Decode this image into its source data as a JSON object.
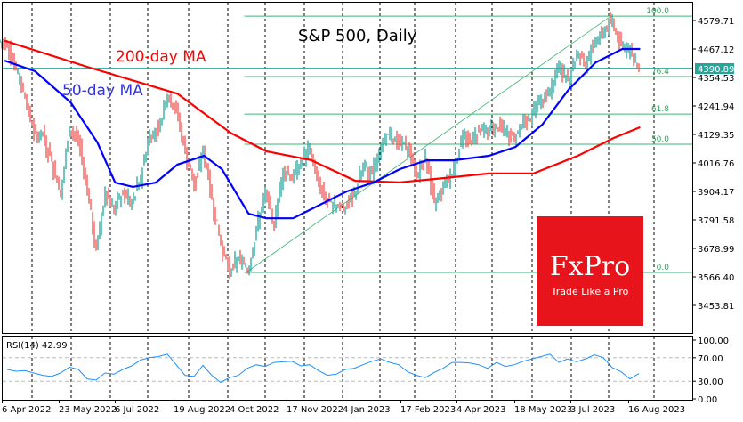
{
  "chart_data": {
    "type": "candlestick",
    "title": "S&P 500, Daily",
    "instrument": "S&P 500",
    "timeframe": "Daily",
    "colors": {
      "up": "#26a69a",
      "down": "#ef5350",
      "ma200": "#ff0000",
      "ma50": "#0000ff",
      "fib": "#3cb371",
      "rsi": "#1e90ff",
      "price_label": "#26a69a"
    },
    "y_ticks": [
      "4579.71",
      "4467.12",
      "4354.53",
      "4241.94",
      "4129.35",
      "4016.76",
      "3904.17",
      "3791.58",
      "3678.99",
      "3566.40",
      "3453.81"
    ],
    "ylim": [
      3400,
      4620
    ],
    "x_tick_labels": [
      "6 Apr 2022",
      "23 May 2022",
      "6 Jul 2022",
      "19 Aug 2022",
      "4 Oct 2022",
      "17 Nov 2022",
      "4 Jan 2023",
      "17 Feb 2023",
      "4 Apr 2023",
      "18 May 2023",
      "3 Jul 2023",
      "16 Aug 2023"
    ],
    "current_price": "4390.89",
    "weekly_close": [
      [
        "2022-04-08",
        4488
      ],
      [
        "2022-04-15",
        4392
      ],
      [
        "2022-04-22",
        4272
      ],
      [
        "2022-04-29",
        4132
      ],
      [
        "2022-05-06",
        4123
      ],
      [
        "2022-05-13",
        4023
      ],
      [
        "2022-05-20",
        3901
      ],
      [
        "2022-05-27",
        4158
      ],
      [
        "2022-06-03",
        4109
      ],
      [
        "2022-06-10",
        3901
      ],
      [
        "2022-06-17",
        3675
      ],
      [
        "2022-06-24",
        3912
      ],
      [
        "2022-07-01",
        3825
      ],
      [
        "2022-07-08",
        3899
      ],
      [
        "2022-07-15",
        3863
      ],
      [
        "2022-07-22",
        3962
      ],
      [
        "2022-07-29",
        4130
      ],
      [
        "2022-08-05",
        4145
      ],
      [
        "2022-08-12",
        4280
      ],
      [
        "2022-08-19",
        4228
      ],
      [
        "2022-08-26",
        4058
      ],
      [
        "2022-09-02",
        3924
      ],
      [
        "2022-09-09",
        4067
      ],
      [
        "2022-09-16",
        3873
      ],
      [
        "2022-09-23",
        3693
      ],
      [
        "2022-09-30",
        3586
      ],
      [
        "2022-10-07",
        3640
      ],
      [
        "2022-10-14",
        3583
      ],
      [
        "2022-10-21",
        3752
      ],
      [
        "2022-10-28",
        3901
      ],
      [
        "2022-11-04",
        3771
      ],
      [
        "2022-11-11",
        3993
      ],
      [
        "2022-11-18",
        3965
      ],
      [
        "2022-11-25",
        4026
      ],
      [
        "2022-12-02",
        4072
      ],
      [
        "2022-12-09",
        3934
      ],
      [
        "2022-12-16",
        3852
      ],
      [
        "2022-12-23",
        3845
      ],
      [
        "2022-12-30",
        3840
      ],
      [
        "2023-01-06",
        3895
      ],
      [
        "2023-01-13",
        3999
      ],
      [
        "2023-01-20",
        3972
      ],
      [
        "2023-01-27",
        4071
      ],
      [
        "2023-02-03",
        4136
      ],
      [
        "2023-02-10",
        4090
      ],
      [
        "2023-02-17",
        4079
      ],
      [
        "2023-02-24",
        3970
      ],
      [
        "2023-03-03",
        4046
      ],
      [
        "2023-03-10",
        3862
      ],
      [
        "2023-03-17",
        3917
      ],
      [
        "2023-03-24",
        3971
      ],
      [
        "2023-03-31",
        4109
      ],
      [
        "2023-04-07",
        4105
      ],
      [
        "2023-04-14",
        4137
      ],
      [
        "2023-04-21",
        4133
      ],
      [
        "2023-04-28",
        4169
      ],
      [
        "2023-05-05",
        4136
      ],
      [
        "2023-05-12",
        4124
      ],
      [
        "2023-05-19",
        4192
      ],
      [
        "2023-05-26",
        4205
      ],
      [
        "2023-06-02",
        4282
      ],
      [
        "2023-06-09",
        4299
      ],
      [
        "2023-06-16",
        4410
      ],
      [
        "2023-06-23",
        4348
      ],
      [
        "2023-06-30",
        4450
      ],
      [
        "2023-07-07",
        4399
      ],
      [
        "2023-07-14",
        4505
      ],
      [
        "2023-07-21",
        4536
      ],
      [
        "2023-07-28",
        4582
      ],
      [
        "2023-08-04",
        4478
      ],
      [
        "2023-08-11",
        4464
      ],
      [
        "2023-08-18",
        4390.89
      ]
    ],
    "ma200": {
      "label": "200-day MA",
      "points": [
        [
          "2022-04-06",
          4500
        ],
        [
          "2022-06-11",
          4395
        ],
        [
          "2022-08-20",
          4290
        ],
        [
          "2022-10-01",
          4135
        ],
        [
          "2022-10-29",
          4063
        ],
        [
          "2022-12-03",
          4028
        ],
        [
          "2023-01-07",
          3946
        ],
        [
          "2023-02-11",
          3940
        ],
        [
          "2023-03-18",
          3957
        ],
        [
          "2023-04-22",
          3975
        ],
        [
          "2023-05-27",
          3975
        ],
        [
          "2023-07-01",
          4045
        ],
        [
          "2023-07-29",
          4115
        ],
        [
          "2023-08-19",
          4158
        ]
      ]
    },
    "ma50": {
      "label": "50-day MA",
      "points": [
        [
          "2022-04-06",
          4421
        ],
        [
          "2022-04-30",
          4379
        ],
        [
          "2022-05-28",
          4256
        ],
        [
          "2022-06-18",
          4098
        ],
        [
          "2022-07-02",
          3939
        ],
        [
          "2022-07-16",
          3922
        ],
        [
          "2022-08-03",
          3939
        ],
        [
          "2022-08-20",
          4010
        ],
        [
          "2022-09-10",
          4045
        ],
        [
          "2022-09-24",
          3992
        ],
        [
          "2022-10-15",
          3816
        ],
        [
          "2022-10-29",
          3798
        ],
        [
          "2022-11-19",
          3798
        ],
        [
          "2022-12-10",
          3851
        ],
        [
          "2022-12-31",
          3904
        ],
        [
          "2023-01-21",
          3939
        ],
        [
          "2023-02-11",
          3992
        ],
        [
          "2023-03-04",
          4027
        ],
        [
          "2023-03-25",
          4027
        ],
        [
          "2023-04-22",
          4045
        ],
        [
          "2023-05-13",
          4080
        ],
        [
          "2023-06-03",
          4168
        ],
        [
          "2023-06-24",
          4308
        ],
        [
          "2023-07-15",
          4414
        ],
        [
          "2023-08-05",
          4467
        ],
        [
          "2023-08-19",
          4467
        ]
      ]
    },
    "fibonacci": {
      "from": [
        "2022-10-13",
        3584
      ],
      "to": [
        "2023-07-27",
        4597
      ],
      "levels": [
        {
          "label": "100.0",
          "ratio": 1.0
        },
        {
          "label": "76.4",
          "ratio": 0.764
        },
        {
          "label": "61.8",
          "ratio": 0.618
        },
        {
          "label": "50.0",
          "ratio": 0.5
        },
        {
          "label": "0.0",
          "ratio": 0.0
        }
      ]
    },
    "rsi": {
      "label": "RSI(14) 42.99",
      "period": 14,
      "last": 42.99,
      "y_ticks": [
        "100.00",
        "70.00",
        "30.00",
        "0.00"
      ],
      "levels": [
        70,
        30
      ],
      "weekly": [
        50,
        47,
        48,
        44,
        40,
        38,
        44,
        54,
        50,
        34,
        32,
        44,
        42,
        50,
        56,
        66,
        70,
        72,
        76,
        58,
        40,
        38,
        57,
        40,
        28,
        36,
        40,
        52,
        58,
        55,
        62,
        63,
        64,
        56,
        58,
        48,
        40,
        42,
        50,
        52,
        58,
        64,
        68,
        62,
        58,
        46,
        40,
        36,
        45,
        52,
        62,
        62,
        61,
        58,
        52,
        62,
        55,
        58,
        64,
        68,
        72,
        76,
        62,
        68,
        63,
        68,
        75,
        70,
        53,
        46,
        34,
        42.99
      ]
    }
  },
  "logo": {
    "brand": "FxPro",
    "tagline": "Trade Like a Pro",
    "color": "#e8141b"
  }
}
